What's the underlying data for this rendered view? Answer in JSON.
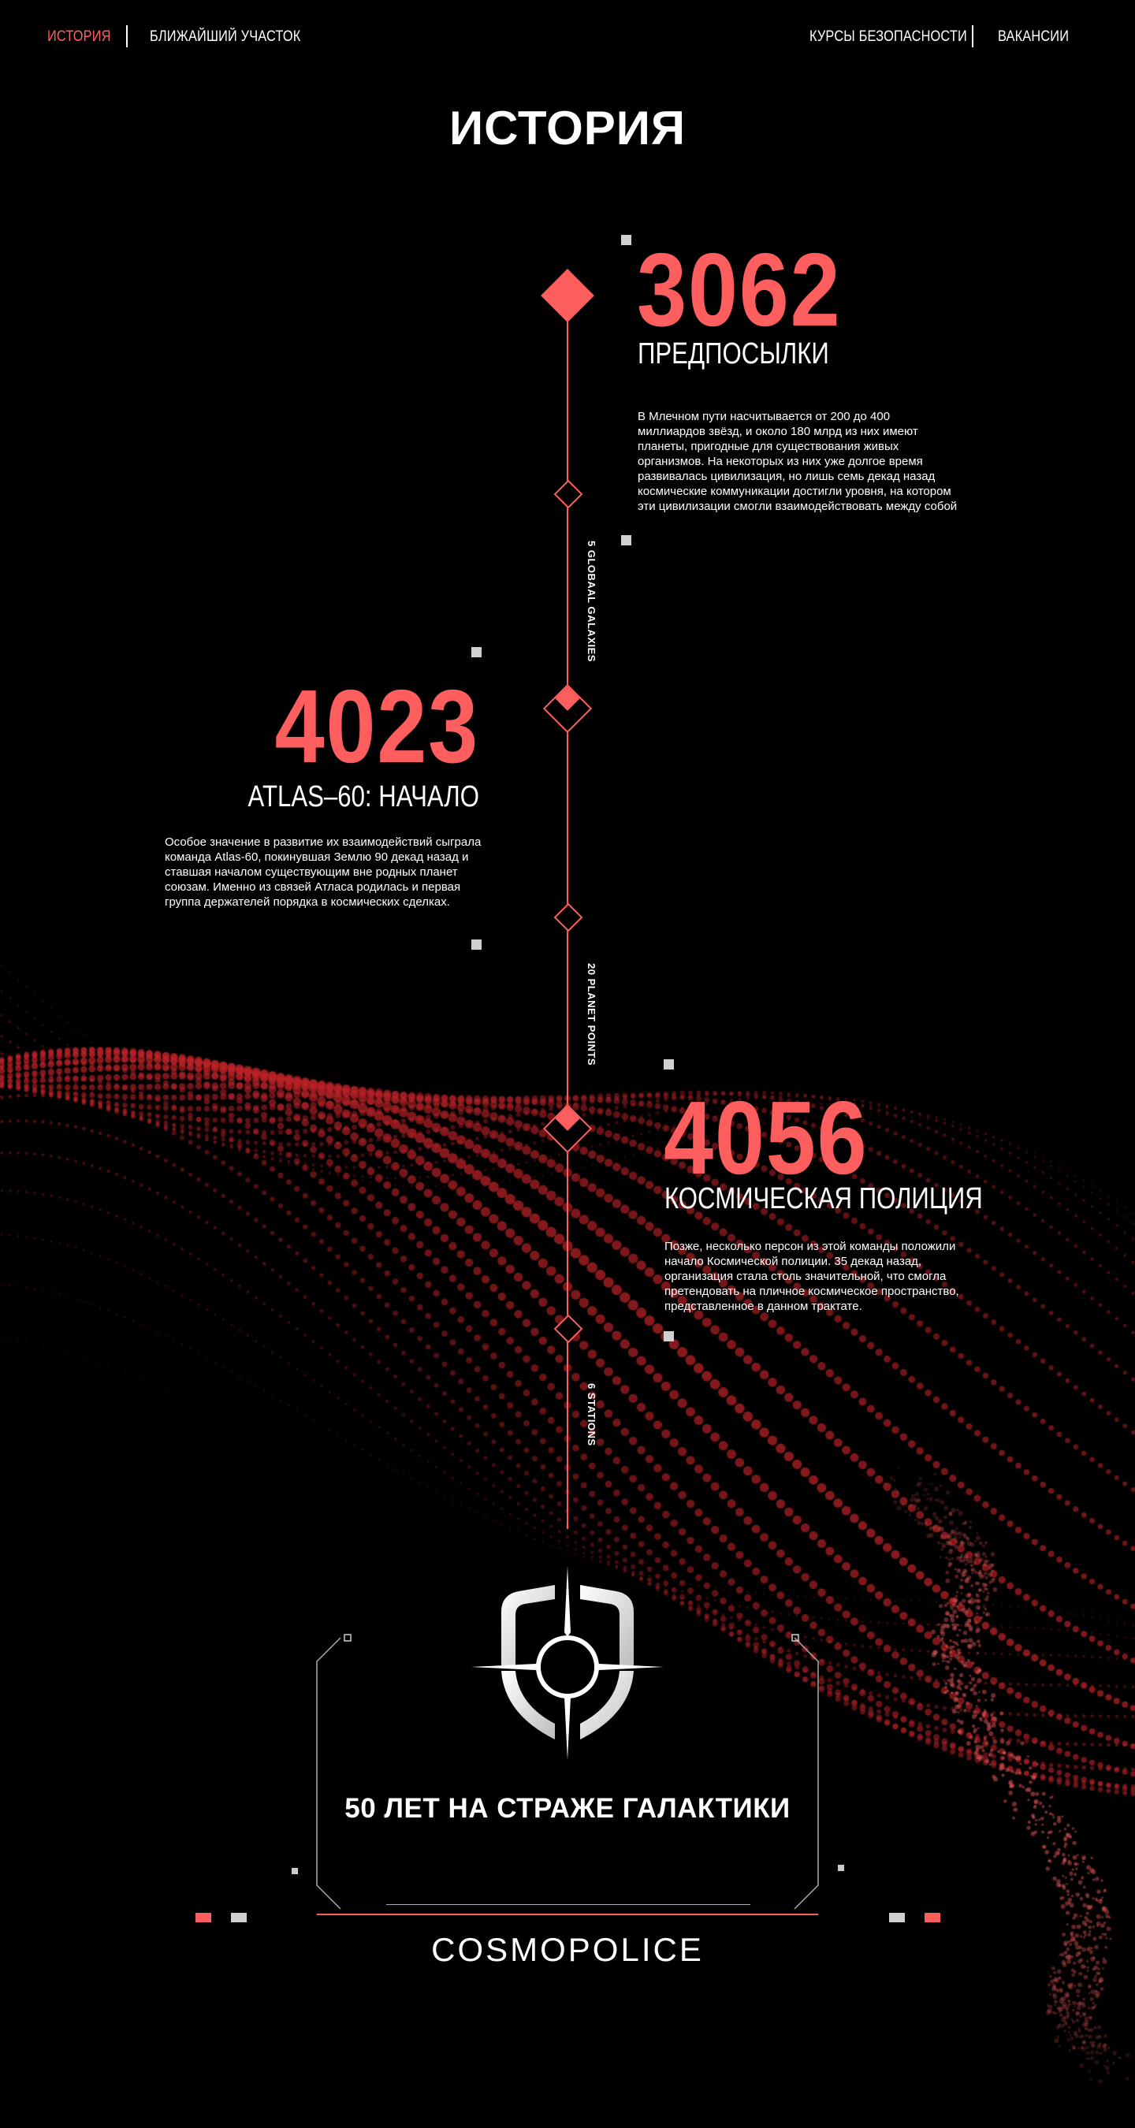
{
  "nav": {
    "left": [
      {
        "label": "ИСТОРИЯ",
        "active": true
      },
      {
        "label": "БЛИЖАЙШИЙ УЧАСТОК",
        "active": false
      }
    ],
    "right": [
      {
        "label": "КУРСЫ БЕЗОПАСНОСТИ"
      },
      {
        "label": "ВАКАНСИИ"
      }
    ]
  },
  "page_title": "ИСТОРИЯ",
  "timeline": {
    "events": [
      {
        "year": "3062",
        "title": "ПРЕДПОСЫЛКИ",
        "text": "В Млечном пути насчитывается от 200 до 400 миллиардов звёзд, и около 180 млрд из них имеют планеты, пригодные для существования живых организмов. На некоторых из них уже долгое время развивалась цивилизация, но лишь семь декад назад космические коммуникации достигли уровня, на котором эти цивилизации смогли взаимодействовать между собой"
      },
      {
        "year": "4023",
        "title": "ATLAS–60: НАЧАЛО",
        "text": "Особое значение в развитие их взаимодействий сыграла команда Atlas-60, покинувшая Землю 90 декад назад и ставшая началом существующим вне родных планет союзам. Именно из связей Атласа родилась и первая группа держателей порядка в космических сделках."
      },
      {
        "year": "4056",
        "title": "КОСМИЧЕСКАЯ ПОЛИЦИЯ",
        "text": "Позже, несколько персон из этой команды положили начало Космической полиции. 35 декад назад, организация стала столь значительной, что смогла претендовать на пличное космическое пространство, представленное в данном трактате."
      }
    ],
    "labels": [
      "5 GLOBAAL GALAXIES",
      "20 PLANET POINTS",
      "6 STATIONS"
    ]
  },
  "footer": {
    "slogan": "50 ЛЕТ НА СТРАЖЕ ГАЛАКТИКИ",
    "brand": "COSMOPOLICE"
  },
  "colors": {
    "accent": "#ff5e5e",
    "background": "#000000",
    "text": "#ffffff",
    "marker": "#d0d0d0"
  },
  "icons": [
    "shield-crosshair-logo-icon"
  ]
}
